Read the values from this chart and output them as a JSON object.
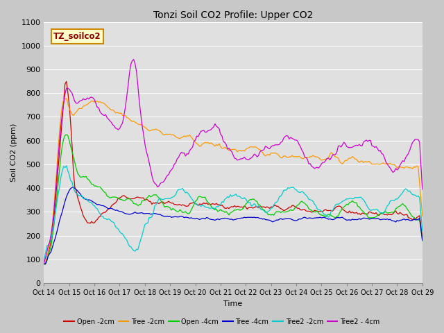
{
  "title": "Tonzi Soil CO2 Profile: Upper CO2",
  "xlabel": "Time",
  "ylabel": "Soil CO2 (ppm)",
  "ylim": [
    0,
    1100
  ],
  "xlim": [
    0,
    270
  ],
  "subtitle_box": "TZ_soilco2",
  "fig_bg_color": "#c8c8c8",
  "plot_bg_color": "#e0e0e0",
  "series": [
    {
      "label": "Open -2cm",
      "color": "#cc0000"
    },
    {
      "label": "Tree -2cm",
      "color": "#ff9900"
    },
    {
      "label": "Open -4cm",
      "color": "#00cc00"
    },
    {
      "label": "Tree -4cm",
      "color": "#0000cc"
    },
    {
      "label": "Tree2 -2cm",
      "color": "#00cccc"
    },
    {
      "label": "Tree2 - 4cm",
      "color": "#cc00cc"
    }
  ],
  "xtick_labels": [
    "Oct 14",
    "Oct 15",
    "Oct 16",
    "Oct 17",
    "Oct 18",
    "Oct 19",
    "Oct 20",
    "Oct 21",
    "Oct 22",
    "Oct 23",
    "Oct 24",
    "Oct 25",
    "Oct 26",
    "Oct 27",
    "Oct 28",
    "Oct 29"
  ],
  "xtick_positions": [
    0,
    18,
    36,
    54,
    72,
    90,
    108,
    126,
    144,
    162,
    180,
    198,
    216,
    234,
    252,
    270
  ],
  "ytick_positions": [
    0,
    100,
    200,
    300,
    400,
    500,
    600,
    700,
    800,
    900,
    1000,
    1100
  ]
}
